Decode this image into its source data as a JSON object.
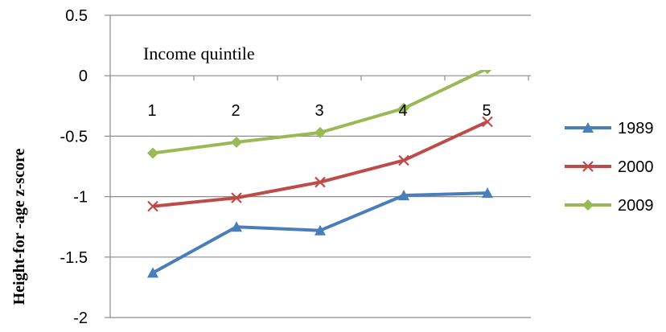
{
  "chart_data": {
    "type": "line",
    "title": "",
    "xlabel": "Income quintile",
    "ylabel": "Height-for -age z-score",
    "categories": [
      "1",
      "2",
      "3",
      "4",
      "5"
    ],
    "ylim": [
      -2,
      0.5
    ],
    "yticks": [
      0.5,
      0,
      -0.5,
      -1,
      -1.5,
      -2
    ],
    "ytick_labels": [
      "0.5",
      "0",
      "-0.5",
      "-1",
      "-1.5",
      "-2"
    ],
    "grid": true,
    "legend_position": "right",
    "series": [
      {
        "name": "1989",
        "values": [
          -1.63,
          -1.25,
          -1.28,
          -0.99,
          -0.97
        ],
        "color": "#4a7ebb",
        "marker": "triangle"
      },
      {
        "name": "2000",
        "values": [
          -1.08,
          -1.01,
          -0.88,
          -0.7,
          -0.38
        ],
        "color": "#be4b48",
        "marker": "x"
      },
      {
        "name": "2009",
        "values": [
          -0.64,
          -0.55,
          -0.47,
          -0.27,
          0.06
        ],
        "color": "#98b954",
        "marker": "diamond"
      }
    ]
  }
}
